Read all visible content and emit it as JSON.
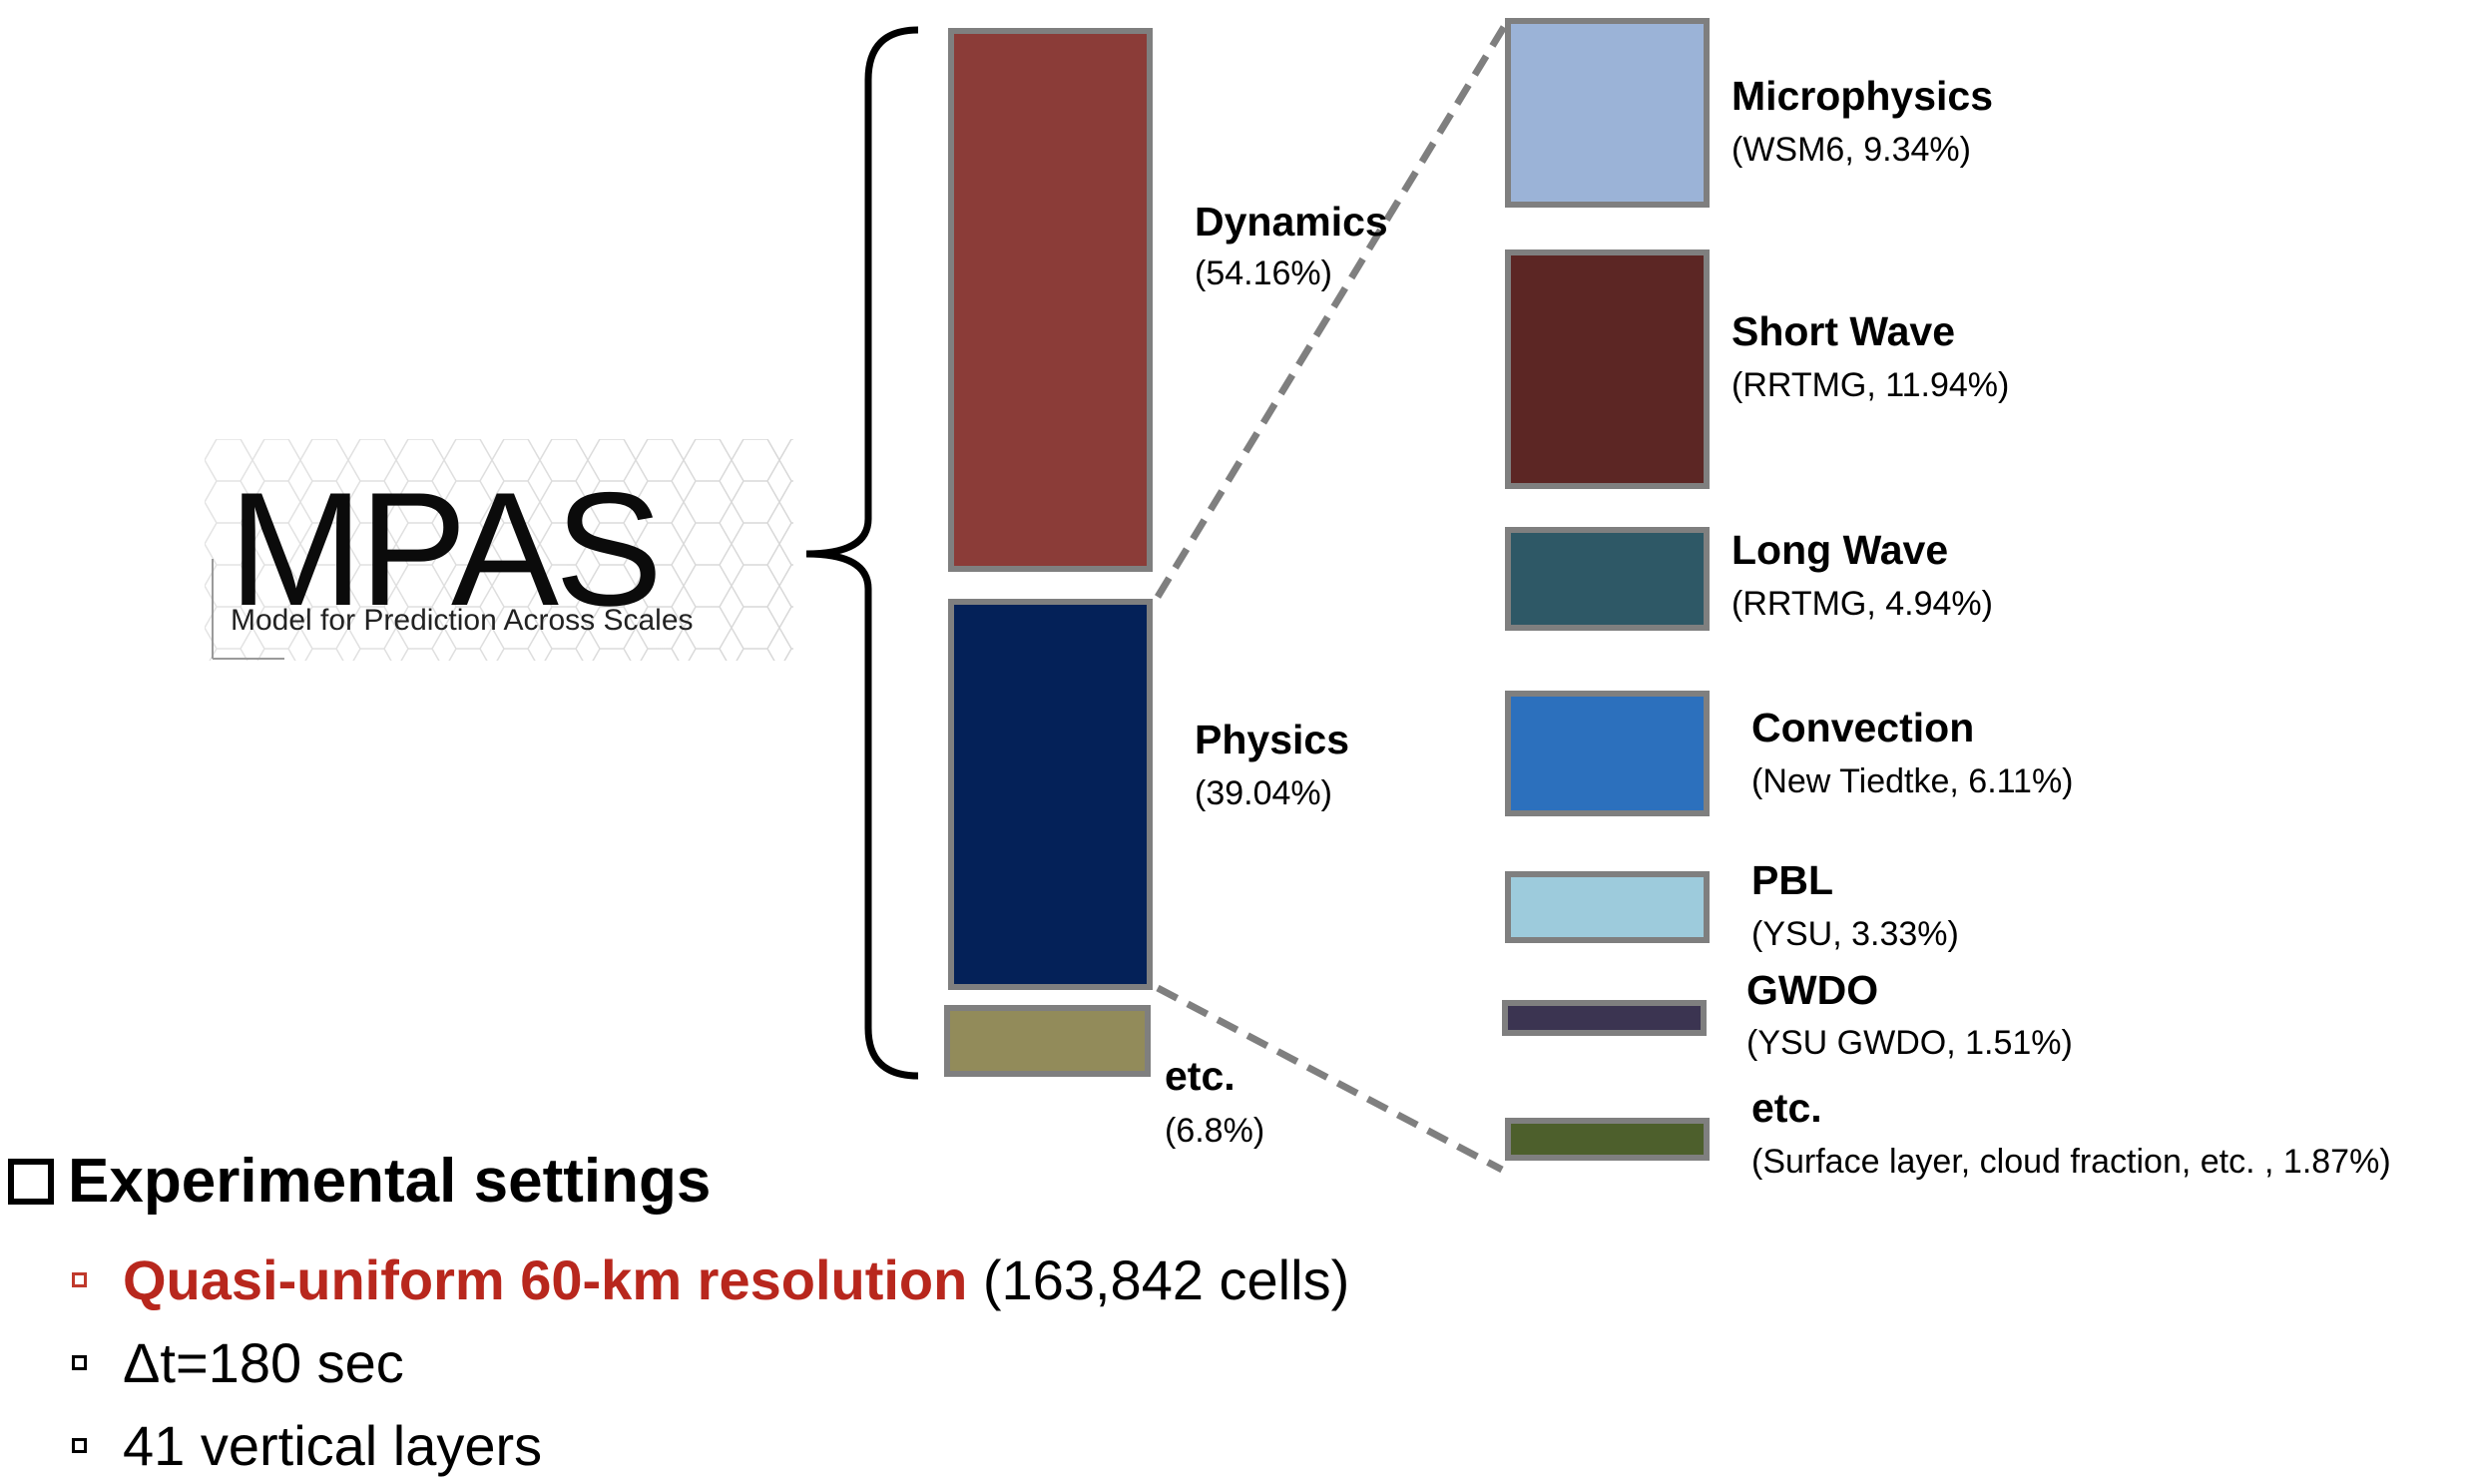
{
  "logo": {
    "name": "MPAS",
    "tagline": "Model for Prediction Across Scales"
  },
  "main_bars": [
    {
      "label": "Dynamics",
      "value": "(54.16%)",
      "percent": 54.16,
      "color": "#8b3c38"
    },
    {
      "label": "Physics",
      "value": "(39.04%)",
      "percent": 39.04,
      "color": "#042158"
    },
    {
      "label": "etc.",
      "value": "(6.8%)",
      "percent": 6.8,
      "color": "#928b5a"
    }
  ],
  "physics_breakdown": [
    {
      "label": "Microphysics",
      "value": "(WSM6, 9.34%)",
      "percent": 9.34,
      "color": "#9bb3d7"
    },
    {
      "label": "Short Wave",
      "value": "(RRTMG, 11.94%)",
      "percent": 11.94,
      "color": "#5c2624"
    },
    {
      "label": "Long Wave",
      "value": "(RRTMG, 4.94%)",
      "percent": 4.94,
      "color": "#2e5866"
    },
    {
      "label": "Convection",
      "value": "(New Tiedtke, 6.11%)",
      "percent": 6.11,
      "color": "#2c70bd"
    },
    {
      "label": "PBL",
      "value": "(YSU, 3.33%)",
      "percent": 3.33,
      "color": "#9dcbdc"
    },
    {
      "label": "GWDO",
      "value": "(YSU GWDO, 1.51%)",
      "percent": 1.51,
      "color": "#3b3451"
    },
    {
      "label": "etc.",
      "value": "(Surface layer, cloud fraction, etc. , 1.87%)",
      "percent": 1.87,
      "color": "#4d5f2c"
    }
  ],
  "settings": {
    "title": "Experimental settings",
    "items": [
      {
        "highlight": "Quasi-uniform 60-km resolution",
        "text": " (163,842 cells)"
      },
      {
        "highlight": "",
        "text": "Δt=180 sec"
      },
      {
        "highlight": "",
        "text": "41 vertical layers"
      }
    ]
  }
}
